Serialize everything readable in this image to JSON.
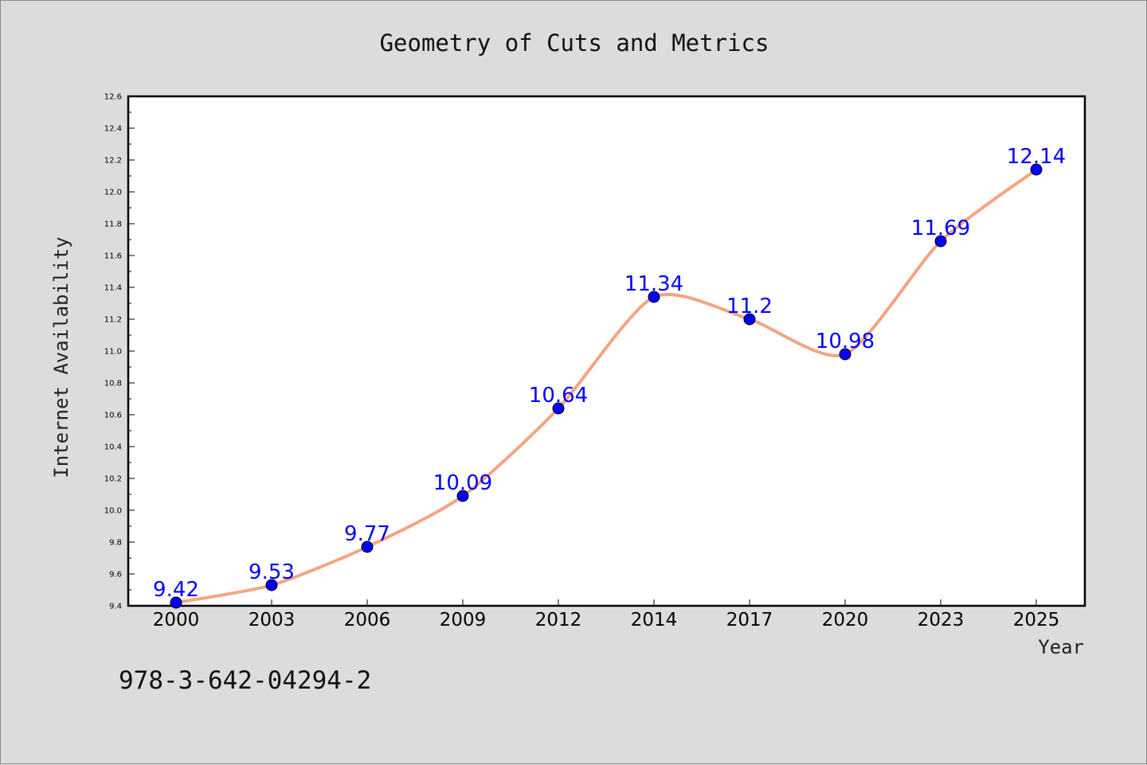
{
  "chart_data": {
    "type": "line",
    "title": "Geometry of Cuts and Metrics",
    "xlabel": "Year",
    "ylabel": "Internet Availability",
    "categories": [
      "2000",
      "2003",
      "2006",
      "2009",
      "2012",
      "2014",
      "2017",
      "2020",
      "2023",
      "2025"
    ],
    "series": [
      {
        "values": [
          9.42,
          9.53,
          9.77,
          10.09,
          10.64,
          11.34,
          11.2,
          10.98,
          11.69,
          12.14
        ],
        "data_labels": [
          "9.42",
          "9.53",
          "9.77",
          "10.09",
          "10.64",
          "11.34",
          "11.2",
          "10.98",
          "11.69",
          "12.14"
        ],
        "line_color": "#f4a582",
        "marker_color": "#0000ff"
      }
    ],
    "ylim": [
      9.4,
      12.6
    ],
    "yticks": [
      "9.4",
      "9.6",
      "9.8",
      "10.0",
      "10.2",
      "10.4",
      "10.6",
      "10.8",
      "11.0",
      "11.2",
      "11.4",
      "11.6",
      "11.8",
      "12.0",
      "12.2",
      "12.4",
      "12.6"
    ],
    "grid": false,
    "legend": "none"
  },
  "footer": {
    "isbn": "978-3-642-04294-2"
  },
  "colors": {
    "background": "#dcdcdc",
    "plot_background": "#ffffff",
    "label_color": "#0000ff"
  }
}
